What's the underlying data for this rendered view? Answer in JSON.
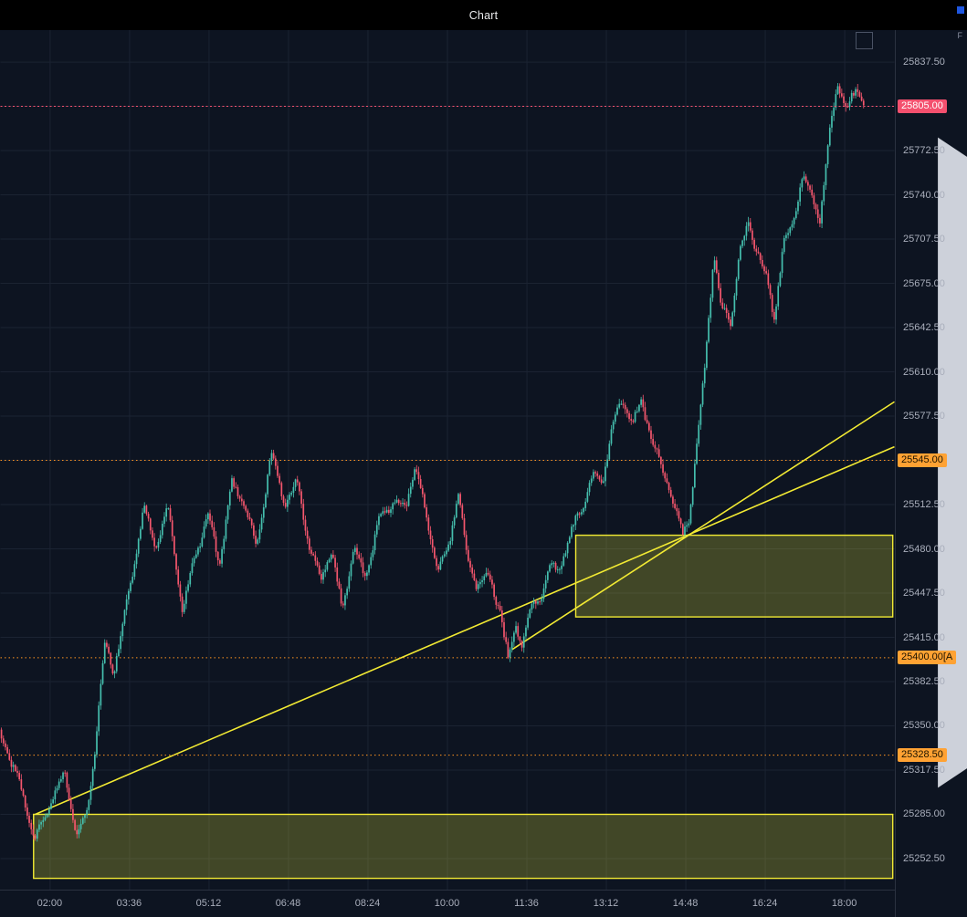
{
  "window": {
    "title": "Chart"
  },
  "price_axis": {
    "top_icon": "F"
  },
  "chart_data": {
    "type": "candlestick",
    "title": "Chart",
    "time_domain": [
      60,
      1140
    ],
    "price_domain": [
      25229.7,
      25861.0
    ],
    "colors": {
      "bg": "#0d1421",
      "grid": "#1b2332",
      "up": "#45bfae",
      "down": "#f4566d",
      "drawing": "#f2ea33",
      "zone_fill": "rgba(235,235,60,0.24)",
      "axis_text": "#a9aebb"
    },
    "x_axis": {
      "ticks": [
        {
          "label": "02:00",
          "min": 120
        },
        {
          "label": "03:36",
          "min": 216
        },
        {
          "label": "05:12",
          "min": 312
        },
        {
          "label": "06:48",
          "min": 408
        },
        {
          "label": "08:24",
          "min": 504
        },
        {
          "label": "10:00",
          "min": 600
        },
        {
          "label": "11:36",
          "min": 696
        },
        {
          "label": "13:12",
          "min": 792
        },
        {
          "label": "14:48",
          "min": 888
        },
        {
          "label": "16:24",
          "min": 984
        },
        {
          "label": "18:00",
          "min": 1080
        }
      ]
    },
    "y_axis": {
      "ticks": [
        {
          "label": "25837.50",
          "price": 25837.5
        },
        {
          "label": "25772.50",
          "price": 25772.5
        },
        {
          "label": "25740.00",
          "price": 25740.0
        },
        {
          "label": "25707.50",
          "price": 25707.5
        },
        {
          "label": "25675.00",
          "price": 25675.0
        },
        {
          "label": "25642.50",
          "price": 25642.5
        },
        {
          "label": "25610.00",
          "price": 25610.0
        },
        {
          "label": "25577.50",
          "price": 25577.5
        },
        {
          "label": "25512.50",
          "price": 25512.5
        },
        {
          "label": "25480.00",
          "price": 25480.0
        },
        {
          "label": "25447.50",
          "price": 25447.5
        },
        {
          "label": "25415.00",
          "price": 25415.0
        },
        {
          "label": "25382.50",
          "price": 25382.5
        },
        {
          "label": "25350.00",
          "price": 25350.0
        },
        {
          "label": "25317.50",
          "price": 25317.5
        },
        {
          "label": "25285.00",
          "price": 25285.0
        },
        {
          "label": "25252.50",
          "price": 25252.5
        }
      ]
    },
    "y_grid": [
      25252.5,
      25285.0,
      25317.5,
      25350.0,
      25382.5,
      25415.0,
      25447.5,
      25480.0,
      25512.5,
      25545.0,
      25577.5,
      25610.0,
      25642.5,
      25675.0,
      25707.5,
      25740.0,
      25772.5,
      25805.0,
      25837.5
    ],
    "levels": [
      {
        "name": "last-price-tag",
        "type": "last",
        "price": 25805.0,
        "label": "25805.00",
        "line": "#f4506e",
        "bg": "#f4506e",
        "fg": "#ffffff"
      },
      {
        "name": "level-tag-25545",
        "type": "alert",
        "price": 25545.0,
        "label": "25545.00",
        "line": "#ff9421",
        "bg": "#ffa233",
        "fg": "#1b1400"
      },
      {
        "name": "level-tag-25400",
        "type": "alert",
        "price": 25400.0,
        "label": "25400.00[A",
        "line": "#ff9421",
        "bg": "#ffa233",
        "fg": "#1b1400"
      },
      {
        "name": "level-tag-25328",
        "type": "alert",
        "price": 25328.5,
        "label": "25328.50",
        "line": "#ff9421",
        "bg": "#ffa233",
        "fg": "#1b1400"
      }
    ],
    "trendlines": [
      {
        "from": [
          102,
          25285
        ],
        "to": [
          1140,
          25555
        ]
      },
      {
        "from": [
          678,
          25406
        ],
        "to": [
          1140,
          25588
        ]
      }
    ],
    "rectangles": [
      {
        "t1": 755,
        "t2": 1138,
        "p1": 25430,
        "p2": 25490
      },
      {
        "t1": 100,
        "t2": 1138,
        "p1": 25238,
        "p2": 25285
      }
    ],
    "candles": {
      "start_min": 60,
      "end_min": 1104,
      "interval_min": 2.4
    },
    "last_price": 25805.0,
    "price_path_anchors": [
      [
        60,
        25345
      ],
      [
        77,
        25315
      ],
      [
        102,
        25272
      ],
      [
        115,
        25287
      ],
      [
        128,
        25300
      ],
      [
        139,
        25308
      ],
      [
        154,
        25270
      ],
      [
        165,
        25288
      ],
      [
        176,
        25340
      ],
      [
        187,
        25408
      ],
      [
        198,
        25386
      ],
      [
        214,
        25440
      ],
      [
        234,
        25515
      ],
      [
        248,
        25478
      ],
      [
        264,
        25505
      ],
      [
        281,
        25437
      ],
      [
        294,
        25475
      ],
      [
        312,
        25502
      ],
      [
        325,
        25464
      ],
      [
        341,
        25530
      ],
      [
        356,
        25518
      ],
      [
        371,
        25478
      ],
      [
        388,
        25546
      ],
      [
        404,
        25518
      ],
      [
        419,
        25532
      ],
      [
        435,
        25478
      ],
      [
        448,
        25452
      ],
      [
        461,
        25482
      ],
      [
        474,
        25440
      ],
      [
        488,
        25482
      ],
      [
        501,
        25452
      ],
      [
        518,
        25500
      ],
      [
        537,
        25522
      ],
      [
        551,
        25507
      ],
      [
        562,
        25540
      ],
      [
        576,
        25498
      ],
      [
        590,
        25472
      ],
      [
        603,
        25483
      ],
      [
        614,
        25522
      ],
      [
        625,
        25468
      ],
      [
        636,
        25452
      ],
      [
        650,
        25465
      ],
      [
        665,
        25438
      ],
      [
        675,
        25394
      ],
      [
        683,
        25420
      ],
      [
        691,
        25408
      ],
      [
        702,
        25438
      ],
      [
        713,
        25448
      ],
      [
        724,
        25470
      ],
      [
        735,
        25462
      ],
      [
        750,
        25486
      ],
      [
        764,
        25512
      ],
      [
        777,
        25540
      ],
      [
        788,
        25530
      ],
      [
        799,
        25562
      ],
      [
        813,
        25586
      ],
      [
        824,
        25572
      ],
      [
        836,
        25592
      ],
      [
        849,
        25562
      ],
      [
        862,
        25532
      ],
      [
        874,
        25512
      ],
      [
        885,
        25490
      ],
      [
        893,
        25506
      ],
      [
        902,
        25560
      ],
      [
        912,
        25612
      ],
      [
        923,
        25696
      ],
      [
        932,
        25652
      ],
      [
        943,
        25645
      ],
      [
        954,
        25703
      ],
      [
        965,
        25722
      ],
      [
        976,
        25698
      ],
      [
        987,
        25672
      ],
      [
        996,
        25645
      ],
      [
        1007,
        25705
      ],
      [
        1018,
        25722
      ],
      [
        1029,
        25758
      ],
      [
        1040,
        25738
      ],
      [
        1051,
        25716
      ],
      [
        1062,
        25778
      ],
      [
        1073,
        25826
      ],
      [
        1084,
        25808
      ],
      [
        1095,
        25818
      ],
      [
        1104,
        25805
      ]
    ]
  }
}
